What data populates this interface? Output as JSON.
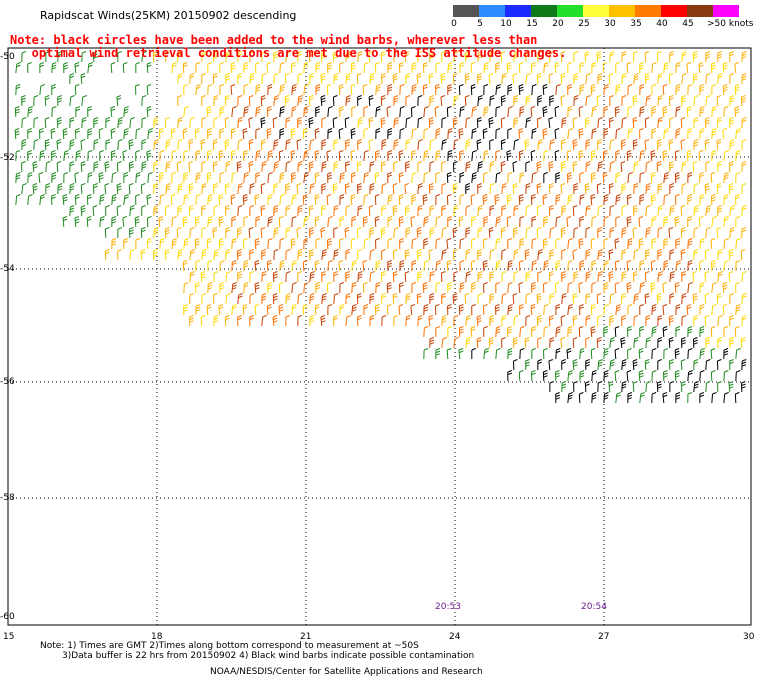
{
  "title": "Rapidscat Winds(25KM) 20150902 descending",
  "note_line1": "Note: black circles have been added to the wind barbs, wherever less than",
  "note_line2": "   optimal wind retrieval conditions are met due to the ISS attitude changes.",
  "scale": {
    "labels": [
      "0",
      "5",
      "10",
      "15",
      "20",
      "25",
      "30",
      "35",
      "40",
      "45",
      ">50 knots"
    ],
    "colors": [
      "#555555",
      "#2e8bff",
      "#1c2bff",
      "#0f7a18",
      "#22e02a",
      "#ffff3c",
      "#ffc000",
      "#ff7a00",
      "#ff0000",
      "#8a3a10",
      "#ff00ff",
      "#6a0080"
    ]
  },
  "lat_labels": [
    "-50",
    "-52",
    "-54",
    "-56",
    "-58",
    "-60"
  ],
  "lon_labels": [
    "15",
    "18",
    "21",
    "24",
    "27",
    "30"
  ],
  "time_labels": [
    "20:53",
    "20:54"
  ],
  "footer_line1": "Note: 1) Times are GMT 2)Times along bottom correspond to measurement at ~50S",
  "footer_line2": "3)Data buffer is 22 hrs from 20150902 4) Black wind barbs indicate possible contamination",
  "credit": "NOAA/NESDIS/Center for Satellite Applications and Research"
}
